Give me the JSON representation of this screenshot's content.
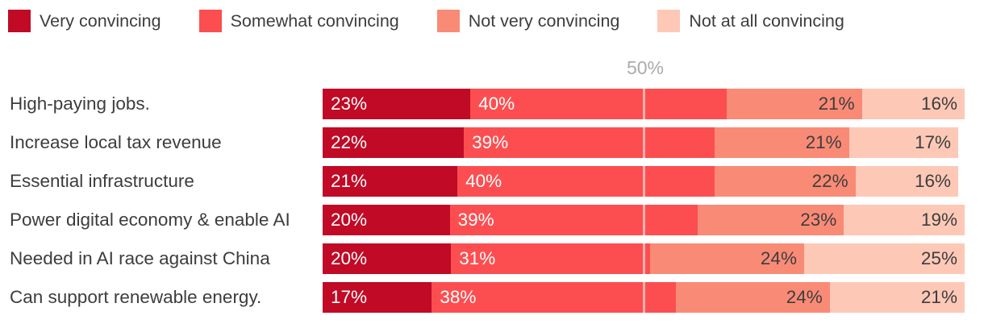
{
  "legend": {
    "items": [
      {
        "label": "Very convincing",
        "color": "#c00a26"
      },
      {
        "label": "Somewhat convincing",
        "color": "#fc4e50"
      },
      {
        "label": "Not very convincing",
        "color": "#f98b76"
      },
      {
        "label": "Not at all convincing",
        "color": "#fdc9b6"
      }
    ]
  },
  "theme": {
    "text_color": "#3d3d3d",
    "grid_label_color": "#ababab",
    "gridline_color": "rgba(255,255,255,0.55)"
  },
  "chart_data": {
    "type": "bar",
    "orientation": "horizontal",
    "stacked": true,
    "title": "",
    "xlabel": "",
    "ylabel": "",
    "xlim": [
      0,
      100
    ],
    "legend_position": "top",
    "value_label_format": "{value}%",
    "gridlines": [
      {
        "value": 50,
        "label": "50%"
      }
    ],
    "categories": [
      "High-paying jobs.",
      "Increase local tax revenue",
      "Essential infrastructure",
      "Power digital economy & enable AI",
      "Needed in AI race against China",
      "Can support renewable energy."
    ],
    "series": [
      {
        "name": "Very convincing",
        "color": "#c00a26",
        "label_color": "#ffffff",
        "label_align": "start",
        "values": [
          23,
          22,
          21,
          20,
          20,
          17
        ]
      },
      {
        "name": "Somewhat convincing",
        "color": "#fc4e50",
        "label_color": "#ffffff",
        "label_align": "start",
        "values": [
          40,
          39,
          40,
          39,
          31,
          38
        ]
      },
      {
        "name": "Not very convincing",
        "color": "#f98b76",
        "label_color": "#3d3d3d",
        "label_align": "end",
        "values": [
          21,
          21,
          22,
          23,
          24,
          24
        ]
      },
      {
        "name": "Not at all convincing",
        "color": "#fdc9b6",
        "label_color": "#3d3d3d",
        "label_align": "end",
        "values": [
          16,
          17,
          16,
          19,
          25,
          21
        ]
      }
    ]
  }
}
